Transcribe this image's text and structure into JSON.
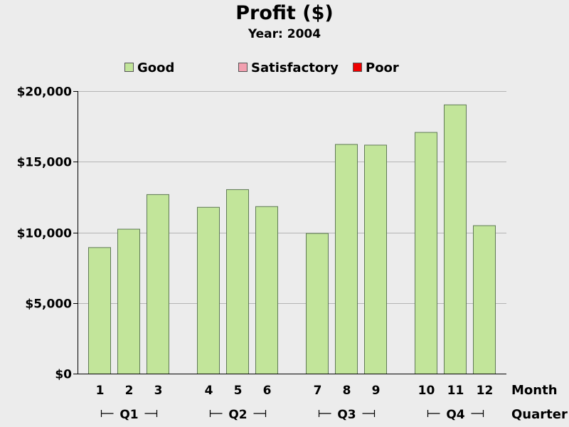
{
  "chart_data": {
    "type": "bar",
    "title": "Profit ($)",
    "subtitle": "Year: 2004",
    "categories": [
      "1",
      "2",
      "3",
      "4",
      "5",
      "6",
      "7",
      "8",
      "9",
      "10",
      "11",
      "12"
    ],
    "groups": [
      {
        "label": "Q1",
        "months": [
          "1",
          "2",
          "3"
        ]
      },
      {
        "label": "Q2",
        "months": [
          "4",
          "5",
          "6"
        ]
      },
      {
        "label": "Q3",
        "months": [
          "7",
          "8",
          "9"
        ]
      },
      {
        "label": "Q4",
        "months": [
          "10",
          "11",
          "12"
        ]
      }
    ],
    "values": [
      8950,
      10250,
      12700,
      11800,
      13050,
      11850,
      9950,
      16250,
      16200,
      17100,
      19050,
      10500
    ],
    "status": [
      "Good",
      "Good",
      "Good",
      "Good",
      "Good",
      "Good",
      "Good",
      "Good",
      "Good",
      "Good",
      "Good",
      "Good"
    ],
    "legend": [
      {
        "label": "Good",
        "color": "#c2e59a"
      },
      {
        "label": "Satisfactory",
        "color": "#f2a0b0"
      },
      {
        "label": "Poor",
        "color": "#ee0000"
      }
    ],
    "xlabel": "Month",
    "group_axis_label": "Quarter",
    "ylim": [
      0,
      20000
    ],
    "yticks": [
      0,
      5000,
      10000,
      15000,
      20000
    ],
    "ytick_labels": [
      "$0",
      "$5,000",
      "$10,000",
      "$15,000",
      "$20,000"
    ],
    "grid": true,
    "legend_position": "top"
  }
}
